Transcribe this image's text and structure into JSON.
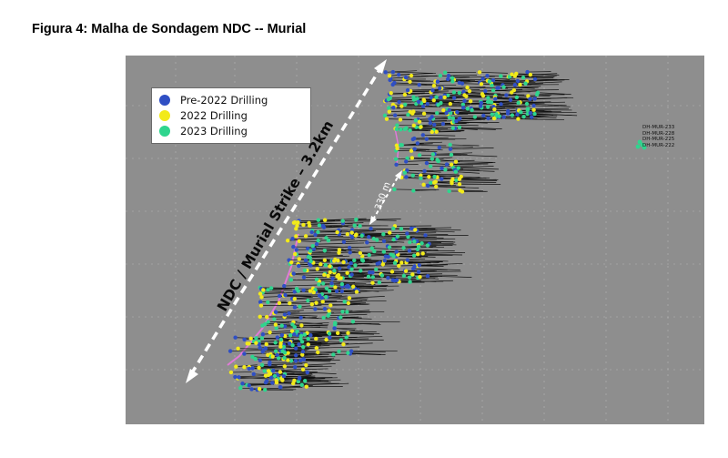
{
  "figure": {
    "title": "Figura 4: Malha de Sondagem NDC -- Murial"
  },
  "legend": {
    "items": [
      {
        "label": "Pre-2022 Drilling",
        "color": "#2f4fc4"
      },
      {
        "label": "2022 Drilling",
        "color": "#f2ea1a"
      },
      {
        "label": "2023 Drilling",
        "color": "#2fd58e"
      }
    ]
  },
  "annotations": {
    "strike": "NDC / Murial Strike – 3.2km",
    "distance": "330 m"
  },
  "hole_labels": [
    "DH-MUR-233",
    "DH-MUR-228",
    "DH-MUR-225",
    "DH-MUR-222"
  ],
  "colors": {
    "background": "#8e8e8e",
    "grid": "#b8b8b8",
    "trace": "#111111",
    "pink_contact": "#e07ad8",
    "arrow": "#ffffff"
  }
}
